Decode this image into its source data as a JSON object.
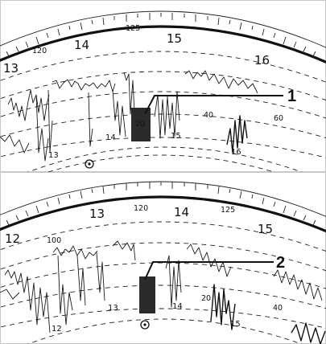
{
  "panels": [
    {
      "id": "top",
      "outer_scale": {
        "hour_labels": [
          "13",
          "14",
          "15",
          "16"
        ],
        "speed_labels": [
          "120",
          "125"
        ]
      },
      "inner_labels": [
        "20",
        "40",
        "60"
      ],
      "hub_labels": [
        "13",
        "14",
        "15",
        "16"
      ],
      "callout": "1"
    },
    {
      "id": "bottom",
      "outer_scale": {
        "hour_labels": [
          "12",
          "13",
          "14",
          "15"
        ],
        "speed_labels": [
          "100",
          "120",
          "125"
        ]
      },
      "inner_labels": [
        "20",
        "40"
      ],
      "hub_labels": [
        "12",
        "13",
        "14",
        "15"
      ],
      "callout": "2"
    }
  ]
}
